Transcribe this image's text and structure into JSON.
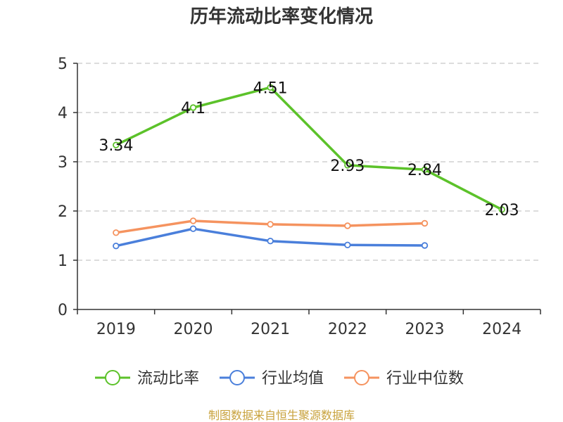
{
  "chart_data": {
    "type": "line",
    "title": "历年流动比率变化情况",
    "categories": [
      "2019",
      "2020",
      "2021",
      "2022",
      "2023",
      "2024"
    ],
    "ylim": [
      0,
      5
    ],
    "yticks": [
      "0",
      "1",
      "2",
      "3",
      "4",
      "5"
    ],
    "grid": true,
    "legend_position": "bottom",
    "series": [
      {
        "name": "流动比率",
        "color": "#5cc22a",
        "values": [
          3.34,
          4.1,
          4.51,
          2.93,
          2.84,
          2.03
        ],
        "labels": [
          "3.34",
          "4.1",
          "4.51",
          "2.93",
          "2.84",
          "2.03"
        ],
        "show_labels": true
      },
      {
        "name": "行业均值",
        "color": "#4a7fdb",
        "values": [
          1.29,
          1.64,
          1.39,
          1.31,
          1.3,
          null
        ],
        "show_labels": false
      },
      {
        "name": "行业中位数",
        "color": "#f5935f",
        "values": [
          1.56,
          1.8,
          1.73,
          1.7,
          1.75,
          null
        ],
        "show_labels": false
      }
    ]
  },
  "footer": {
    "source": "制图数据来自恒生聚源数据库"
  }
}
